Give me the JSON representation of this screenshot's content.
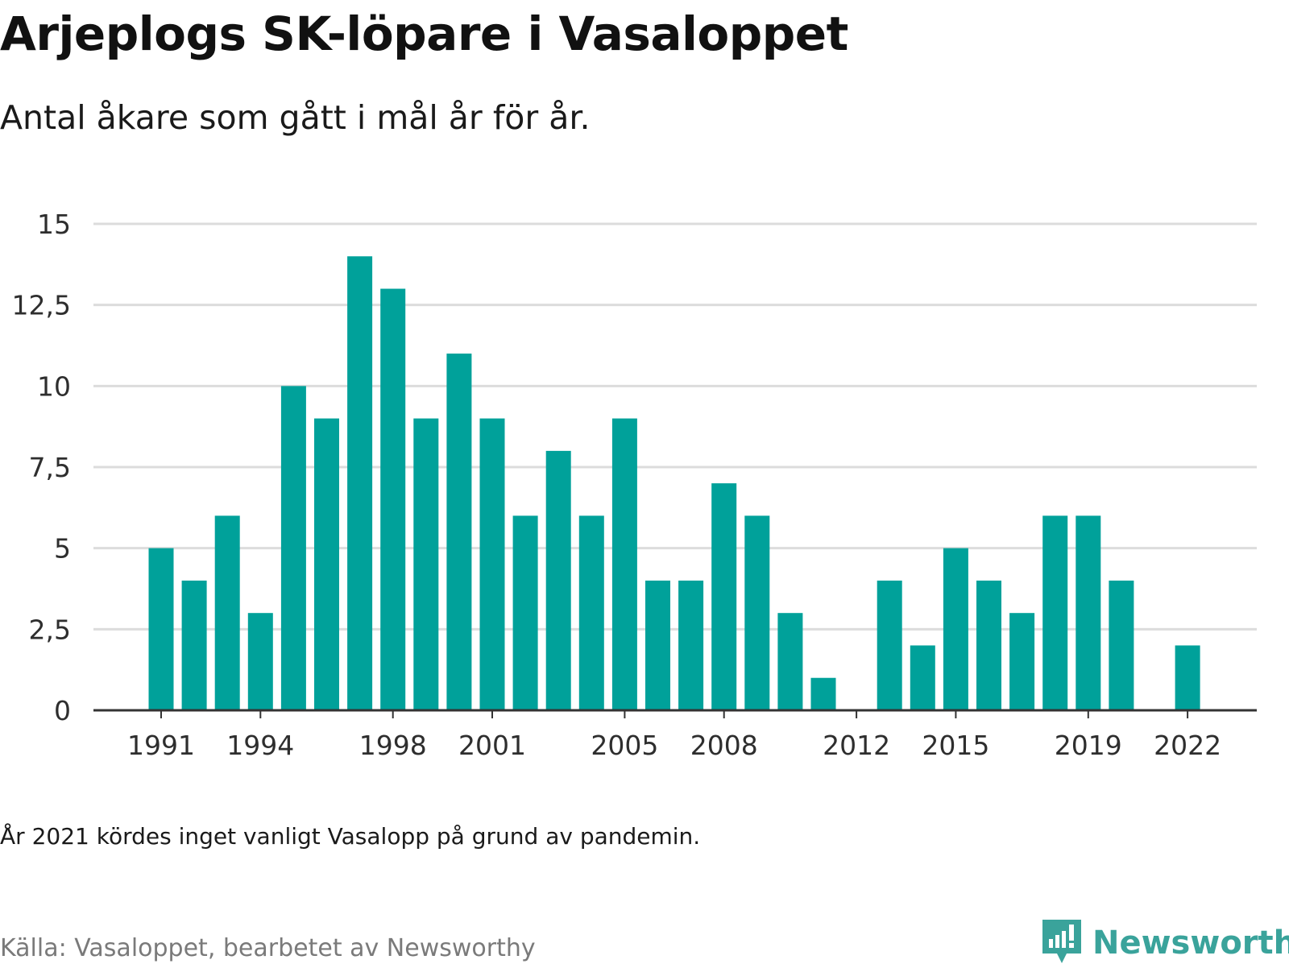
{
  "title": "Arjeplogs SK-löpare i Vasaloppet",
  "subtitle": "Antal åkare som gått i mål år för år.",
  "note": "År 2021 kördes inget vanligt Vasalopp på grund av pandemin.",
  "source": "Källa: Vasaloppet, bearbetet av Newsworthy",
  "brand": {
    "name": "Newsworthy",
    "logo_icon": "bar-chart-speech-bubble-icon"
  },
  "colors": {
    "bar": "#00a19a",
    "grid": "#dcdcdc",
    "axis": "#333333",
    "brand": "#3aa39b"
  },
  "chart_data": {
    "type": "bar",
    "x": [
      1991,
      1992,
      1993,
      1994,
      1995,
      1996,
      1997,
      1998,
      1999,
      2000,
      2001,
      2002,
      2003,
      2004,
      2005,
      2006,
      2007,
      2008,
      2009,
      2010,
      2011,
      2012,
      2013,
      2014,
      2015,
      2016,
      2017,
      2018,
      2019,
      2020,
      2021,
      2022
    ],
    "values": [
      5,
      4,
      6,
      3,
      10,
      9,
      14,
      13,
      9,
      11,
      9,
      6,
      8,
      6,
      9,
      4,
      4,
      7,
      6,
      3,
      1,
      0,
      4,
      2,
      5,
      4,
      3,
      6,
      6,
      4,
      null,
      2
    ],
    "x_tick_labels": [
      "1991",
      "1994",
      "1998",
      "2001",
      "2005",
      "2008",
      "2012",
      "2015",
      "2019",
      "2022"
    ],
    "y_ticks": [
      0,
      2.5,
      5,
      7.5,
      10,
      12.5,
      15
    ],
    "y_tick_labels": [
      "0",
      "2,5",
      "5",
      "7,5",
      "10",
      "12,5",
      "15"
    ],
    "ylim": [
      0,
      15
    ],
    "grid": "horizontal",
    "legend": "none"
  }
}
